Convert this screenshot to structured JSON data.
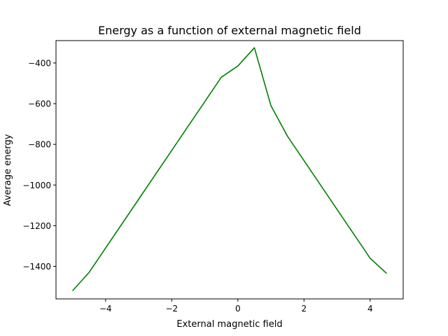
{
  "chart_data": {
    "type": "line",
    "title": "Energy as a function of external magnetic field",
    "xlabel": "External magnetic field",
    "ylabel": "Average energy",
    "xlim": [
      -5.5,
      5
    ],
    "ylim": [
      -1560,
      -290
    ],
    "x_ticks": [
      -4,
      -2,
      0,
      2,
      4
    ],
    "x_tick_labels": [
      "−4",
      "−2",
      "0",
      "2",
      "4"
    ],
    "y_ticks": [
      -1400,
      -1200,
      -1000,
      -800,
      -600,
      -400
    ],
    "y_tick_labels": [
      "−1400",
      "−1200",
      "−1000",
      "−800",
      "−600",
      "−400"
    ],
    "grid": false,
    "series": [
      {
        "color": "#008000",
        "x": [
          -5.0,
          -4.5,
          -4.0,
          -3.5,
          -3.0,
          -2.5,
          -2.0,
          -1.5,
          -1.0,
          -0.5,
          0.0,
          0.5,
          1.0,
          1.5,
          2.0,
          2.5,
          3.0,
          3.5,
          4.0,
          4.5
        ],
        "y": [
          -1520,
          -1430,
          -1310,
          -1190,
          -1070,
          -950,
          -830,
          -710,
          -590,
          -470,
          -415,
          -325,
          -610,
          -760,
          -880,
          -1000,
          -1120,
          -1240,
          -1360,
          -1435
        ]
      }
    ]
  }
}
